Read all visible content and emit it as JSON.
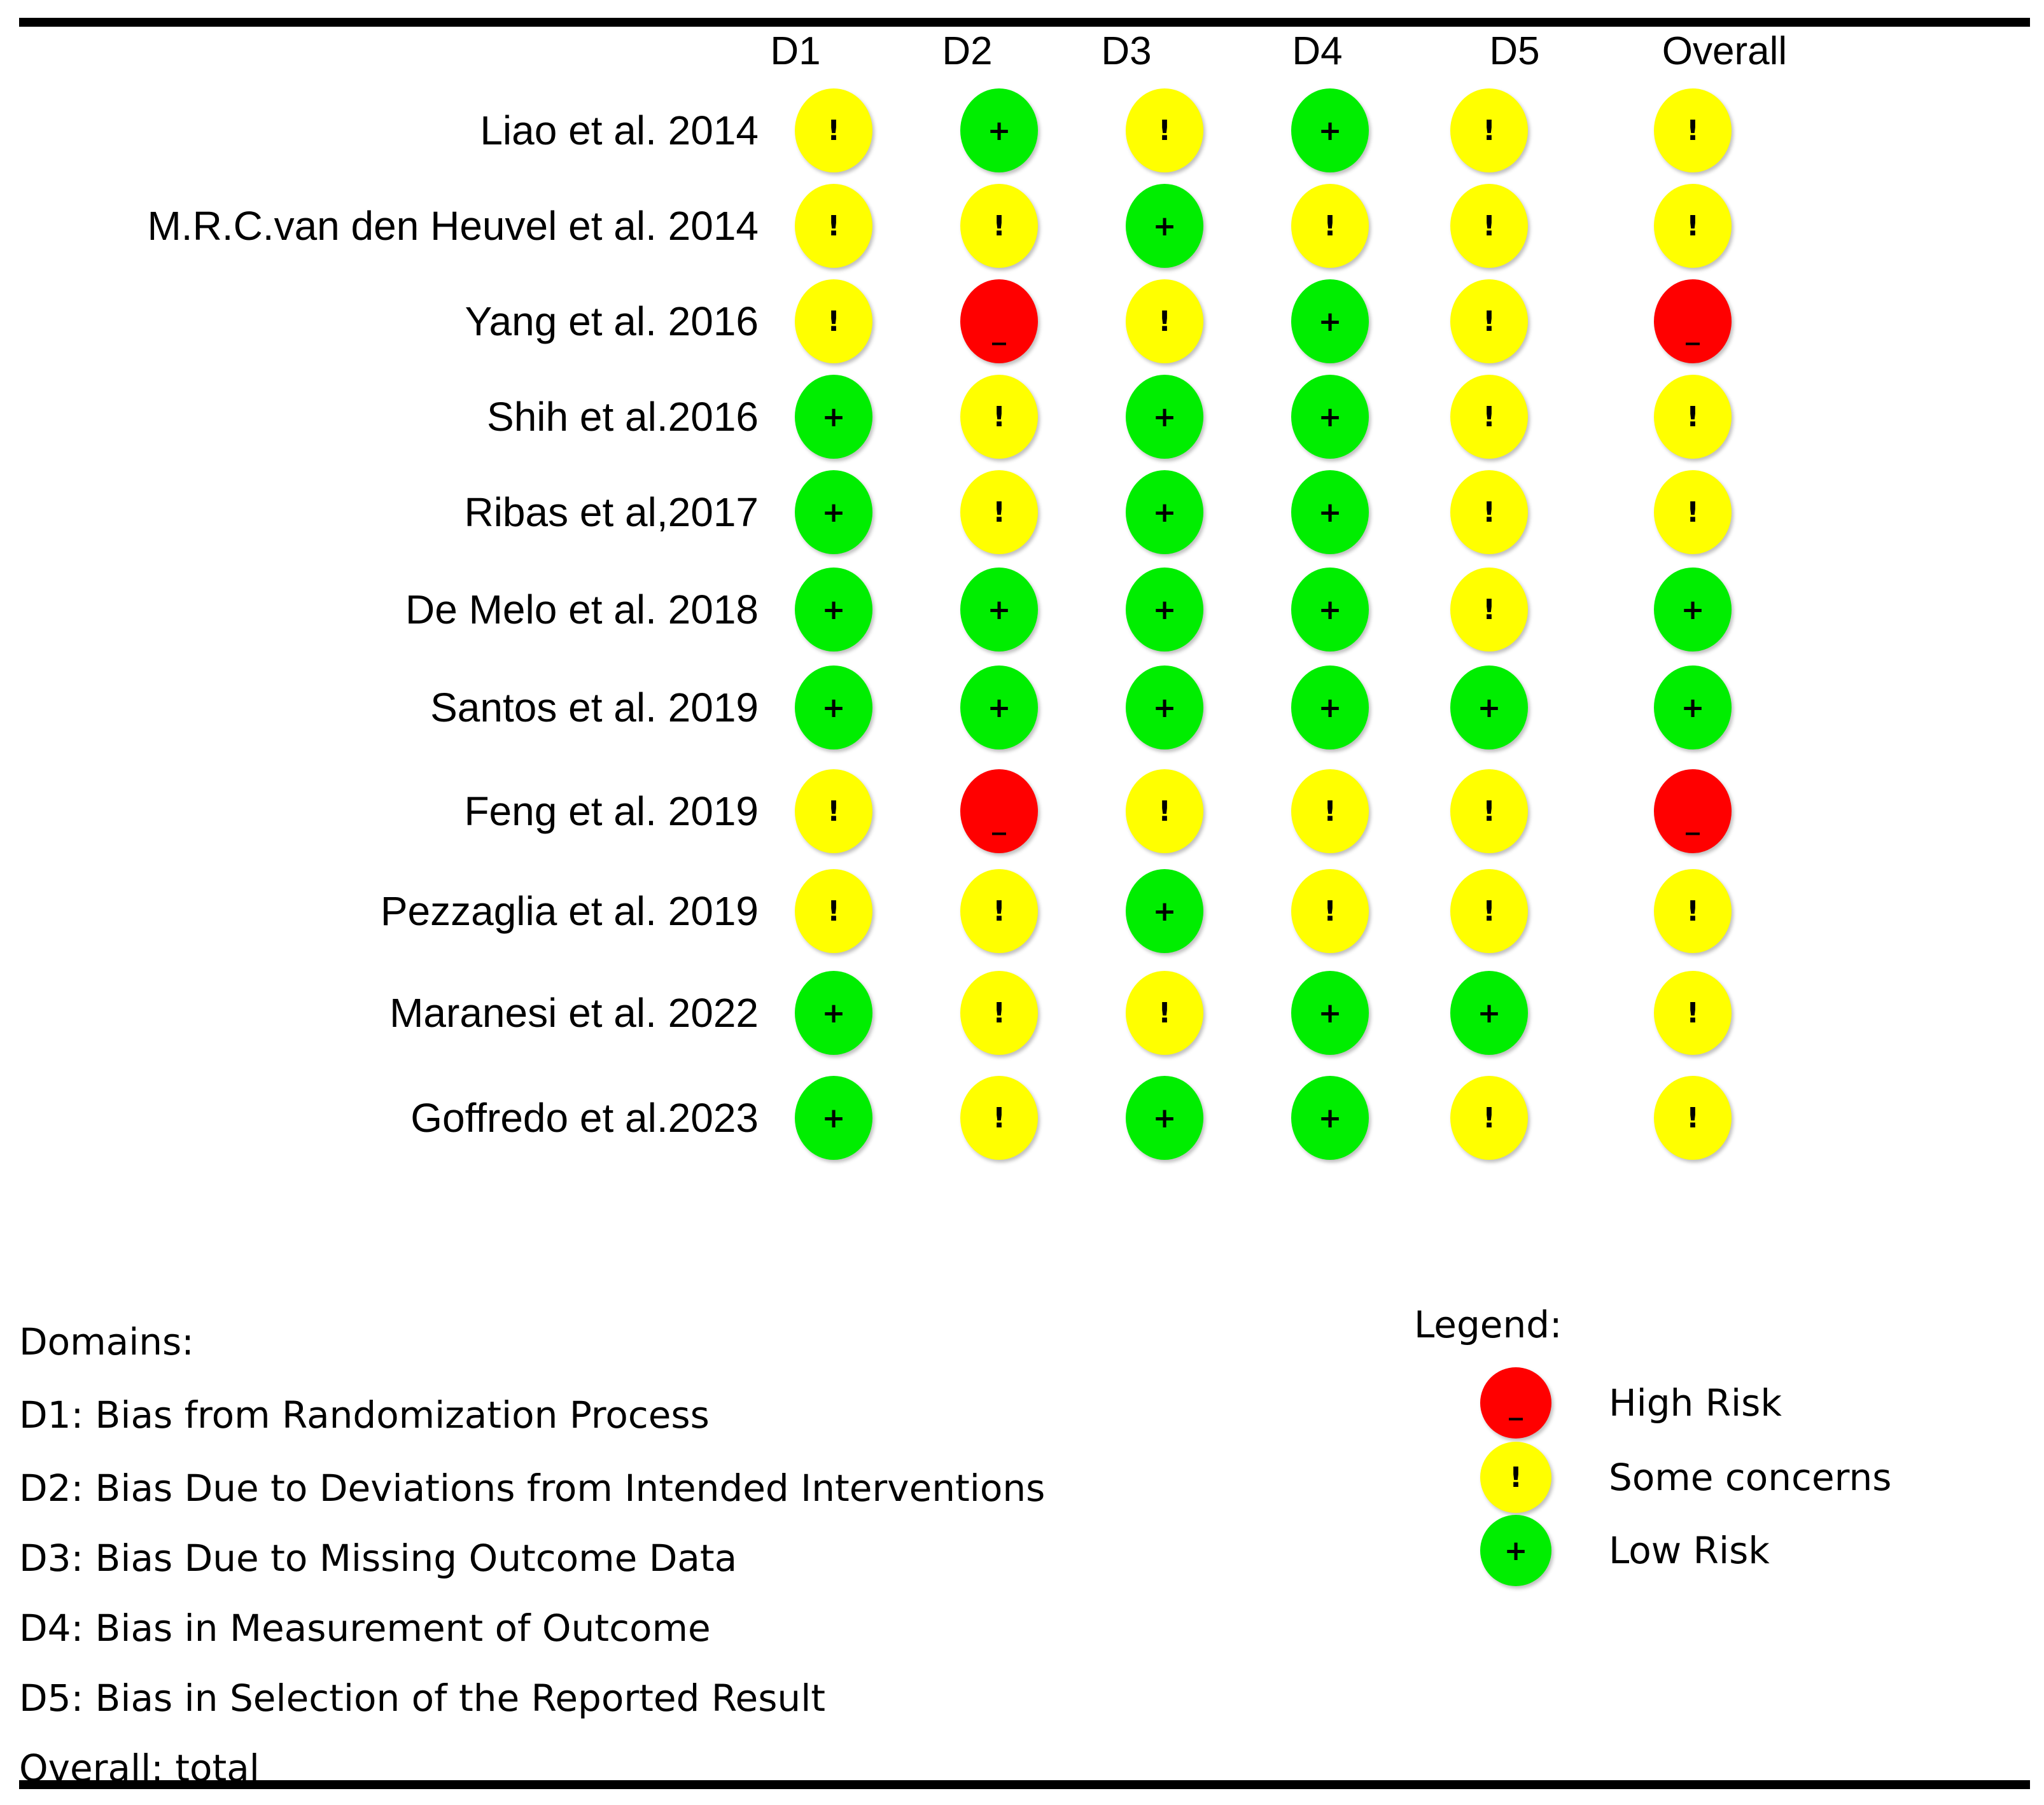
{
  "columns": [
    "D1",
    "D2",
    "D3",
    "D4",
    "D5",
    "Overall"
  ],
  "studies": [
    {
      "name": "Liao et al. 2014",
      "ratings": [
        "some",
        "low",
        "some",
        "low",
        "some",
        "some"
      ]
    },
    {
      "name": "M.R.C.van den Heuvel et al. 2014",
      "ratings": [
        "some",
        "some",
        "low",
        "some",
        "some",
        "some"
      ]
    },
    {
      "name": "Yang et al. 2016",
      "ratings": [
        "some",
        "high",
        "some",
        "low",
        "some",
        "high"
      ]
    },
    {
      "name": "Shih et al.2016",
      "ratings": [
        "low",
        "some",
        "low",
        "low",
        "some",
        "some"
      ]
    },
    {
      "name": "Ribas et al,2017",
      "ratings": [
        "low",
        "some",
        "low",
        "low",
        "some",
        "some"
      ]
    },
    {
      "name": "De Melo et al. 2018",
      "ratings": [
        "low",
        "low",
        "low",
        "low",
        "some",
        "low"
      ]
    },
    {
      "name": "Santos et al. 2019",
      "ratings": [
        "low",
        "low",
        "low",
        "low",
        "low",
        "low"
      ]
    },
    {
      "name": "Feng et al. 2019",
      "ratings": [
        "some",
        "high",
        "some",
        "some",
        "some",
        "high"
      ]
    },
    {
      "name": "Pezzaglia et al. 2019",
      "ratings": [
        "some",
        "some",
        "low",
        "some",
        "some",
        "some"
      ]
    },
    {
      "name": "Maranesi et al. 2022",
      "ratings": [
        "low",
        "some",
        "some",
        "low",
        "low",
        "some"
      ]
    },
    {
      "name": "Goffredo et al.2023",
      "ratings": [
        "low",
        "some",
        "low",
        "low",
        "some",
        "some"
      ]
    }
  ],
  "symbols": {
    "low": "+",
    "some": "!",
    "high": "_"
  },
  "colors": {
    "low": "#00ee00",
    "some": "#ffff00",
    "high": "#ff0000"
  },
  "domains": {
    "title": "Domains:",
    "items": [
      "D1: Bias from Randomization Process",
      "D2: Bias Due to Deviations from Intended Interventions",
      "D3: Bias Due to Missing Outcome Data",
      "D4: Bias in Measurement of Outcome",
      "D5: Bias in Selection of the Reported Result",
      "Overall: total"
    ]
  },
  "legend": {
    "title": "Legend:",
    "items": [
      {
        "key": "high",
        "label": "High Risk"
      },
      {
        "key": "some",
        "label": "Some concerns"
      },
      {
        "key": "low",
        "label": "Low Risk"
      }
    ]
  }
}
